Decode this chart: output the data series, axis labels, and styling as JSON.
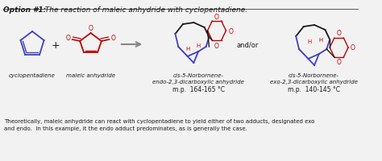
{
  "title_bold": "Option #1:",
  "title_italic": "  The reaction of maleic anhydride with cyclopentadiene.",
  "background_color": "#f0f0f0",
  "label_cyclopentadiene": "cyclopentadiene",
  "label_maleic": "maleic anhydride",
  "label_endo": "cis-5-Norbornene-\nendo-2,3-dicarboxylic anhydride",
  "label_exo": "cis-5-Norbornene-\nexo-2,3-dicarboxylic anhydride",
  "mp_endo": "m.p.  164-165 °C",
  "mp_exo": "m.p.  140-145 °C",
  "andor": "and/or",
  "footer_line1": "Theoretically, maleic anhydride can react with cyclopentadiene to yield either of two adducts, designated ",
  "footer_italic1": "exo",
  "footer_line2": "and ",
  "footer_italic2": "endo",
  "footer_line2b": ".  In this example, it the ",
  "footer_italic3": "endo",
  "footer_line2c": " adduct predominates, as is generally the case.",
  "blue": "#4040c0",
  "red": "#c00000",
  "black": "#1a1a1a",
  "gray": "#888888"
}
